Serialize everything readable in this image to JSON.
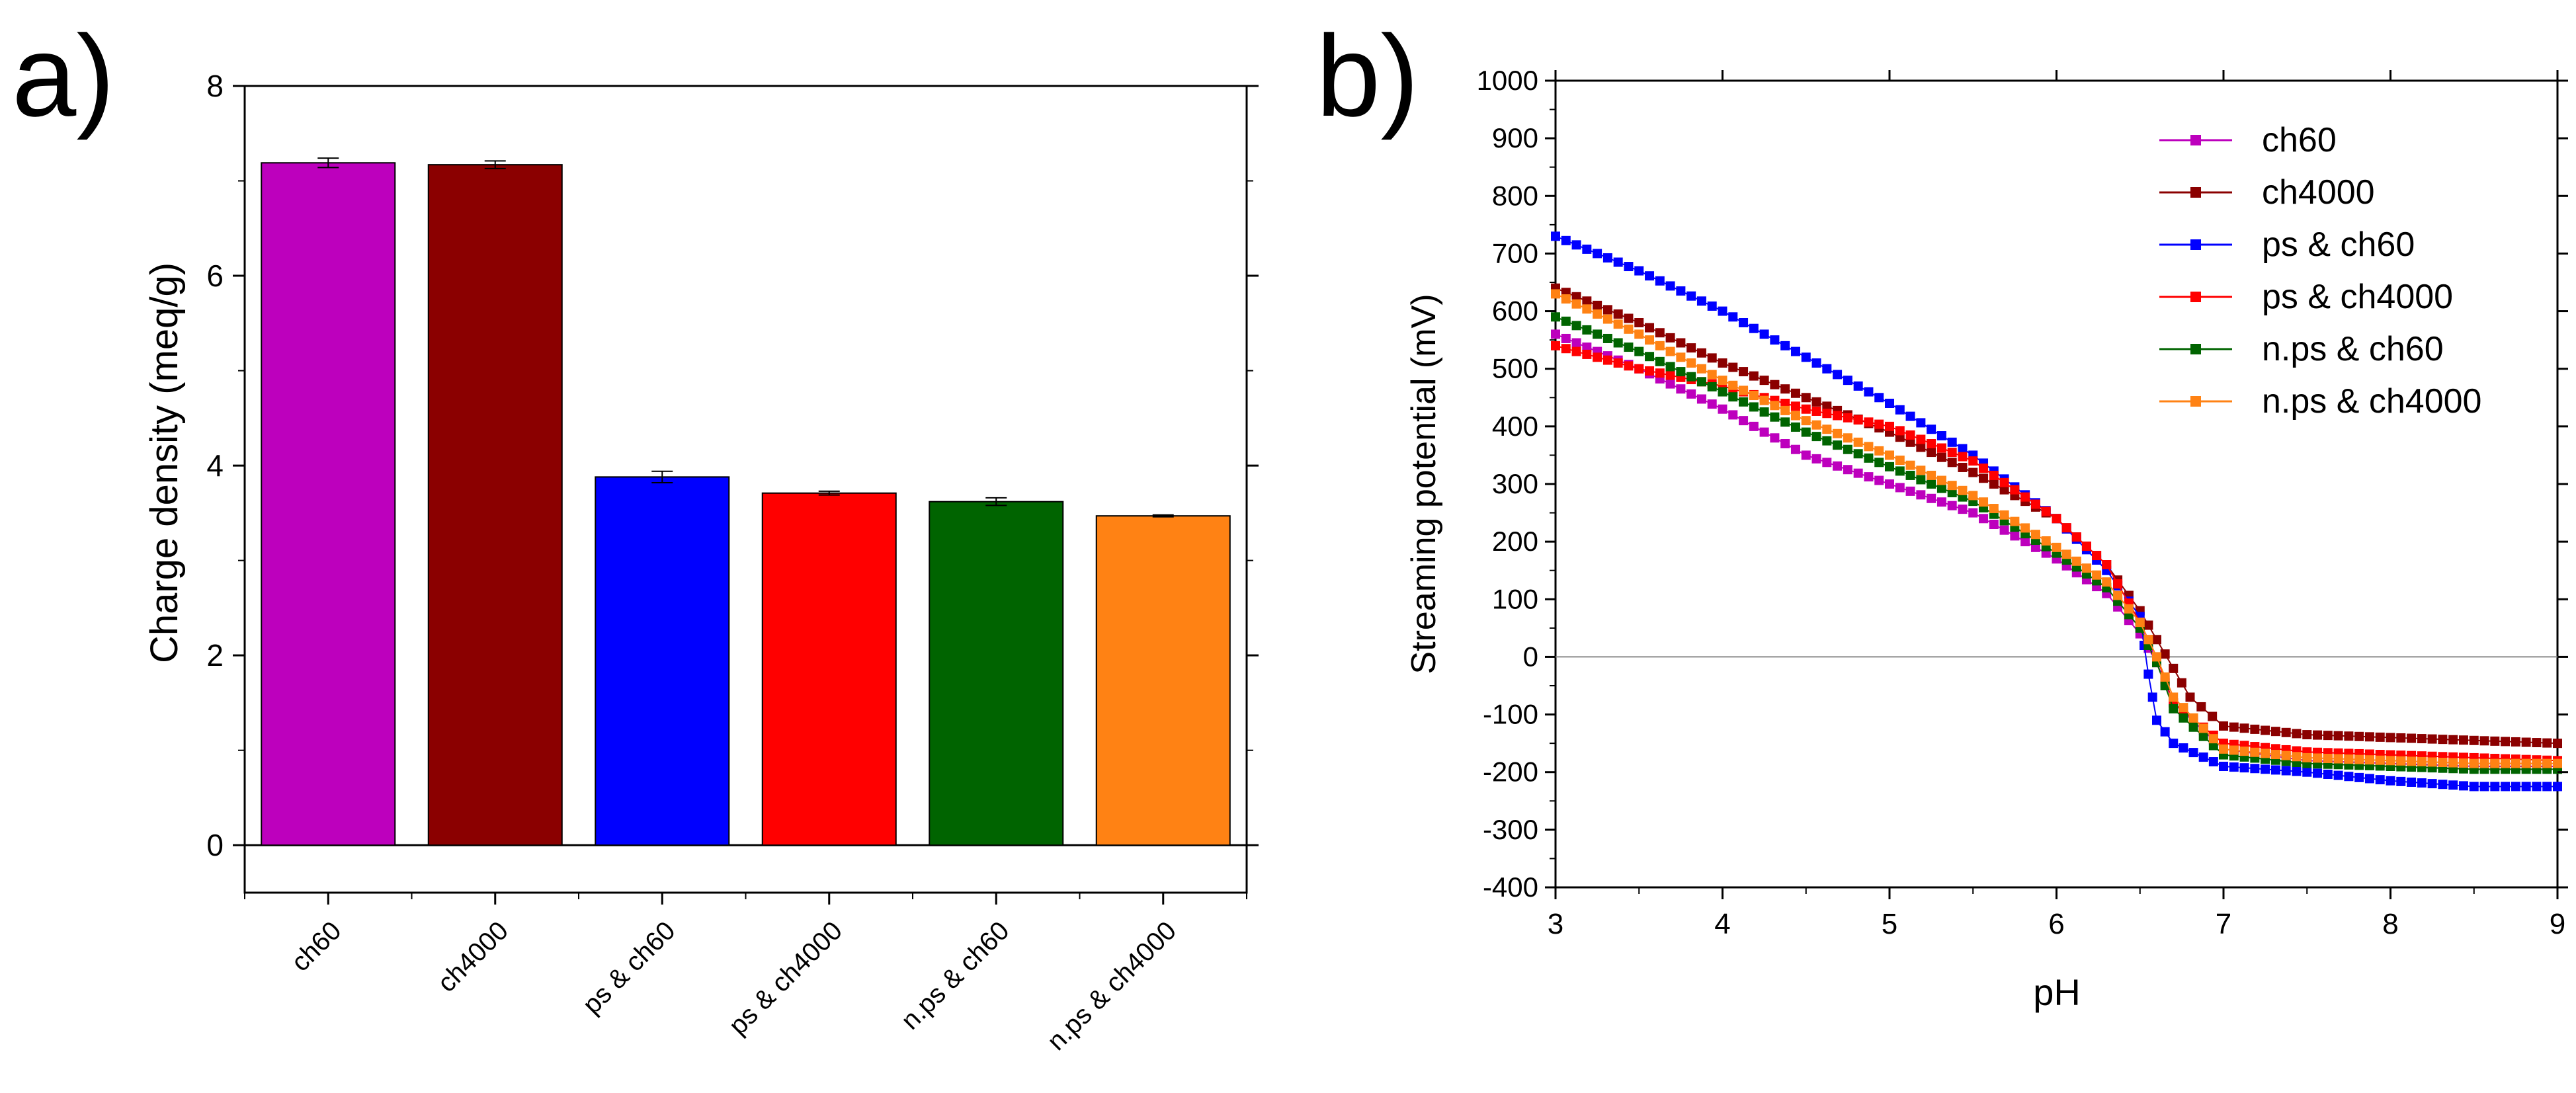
{
  "panels": {
    "a_label": "a)",
    "b_label": "b)"
  },
  "chart_data": [
    {
      "type": "bar",
      "panel": "a)",
      "title": "",
      "xlabel": "",
      "ylabel": "Charge density (meq/g)",
      "ylim": [
        -0.5,
        8
      ],
      "yticks": [
        0,
        2,
        4,
        6,
        8
      ],
      "categories": [
        "ch60",
        "ch4000",
        "ps & ch60",
        "ps & ch4000",
        "n.ps & ch60",
        "n.ps & ch4000"
      ],
      "values": [
        7.19,
        7.17,
        3.88,
        3.71,
        3.62,
        3.47
      ],
      "errors": [
        0.05,
        0.04,
        0.06,
        0.02,
        0.04,
        0.01
      ],
      "colors": [
        "#bd00bd",
        "#8b0000",
        "#0000ff",
        "#ff0000",
        "#006400",
        "#ff8214"
      ],
      "grid": false,
      "legend": "none"
    },
    {
      "type": "line",
      "panel": "b)",
      "title": "",
      "xlabel": "pH",
      "ylabel": "Streaming potential (mV)",
      "xlim": [
        3,
        9
      ],
      "ylim": [
        -400,
        1000
      ],
      "xticks": [
        3,
        4,
        5,
        6,
        7,
        8,
        9
      ],
      "yticks": [
        -400,
        -300,
        -200,
        -100,
        0,
        100,
        200,
        300,
        400,
        500,
        600,
        700,
        800,
        900,
        1000
      ],
      "zero_line": true,
      "legend": "top-right",
      "series": [
        {
          "name": "ch60",
          "color": "#bd00bd",
          "x": [
            3.0,
            3.5,
            4.0,
            4.5,
            5.0,
            5.5,
            6.0,
            6.3,
            6.5,
            6.6,
            6.7,
            7.0,
            7.5,
            8.0,
            8.5,
            9.0
          ],
          "y": [
            560,
            500,
            430,
            350,
            300,
            250,
            170,
            110,
            40,
            -10,
            -80,
            -160,
            -180,
            -185,
            -190,
            -190
          ]
        },
        {
          "name": "ch4000",
          "color": "#8b0000",
          "x": [
            3.0,
            3.5,
            4.0,
            4.5,
            5.0,
            5.5,
            6.0,
            6.3,
            6.5,
            6.6,
            6.7,
            6.8,
            7.0,
            7.5,
            8.0,
            8.5,
            9.0
          ],
          "y": [
            640,
            580,
            510,
            450,
            390,
            320,
            240,
            160,
            80,
            30,
            -20,
            -70,
            -120,
            -135,
            -140,
            -145,
            -150
          ]
        },
        {
          "name": "ps & ch60",
          "color": "#0000ff",
          "x": [
            3.0,
            3.5,
            4.0,
            4.5,
            5.0,
            5.5,
            6.0,
            6.3,
            6.5,
            6.55,
            6.6,
            6.7,
            7.0,
            7.5,
            8.0,
            8.5,
            9.0
          ],
          "y": [
            730,
            670,
            600,
            520,
            440,
            350,
            240,
            150,
            70,
            -30,
            -110,
            -150,
            -190,
            -200,
            -215,
            -225,
            -225
          ]
        },
        {
          "name": "ps & ch4000",
          "color": "#ff0000",
          "x": [
            3.0,
            3.5,
            4.0,
            4.5,
            5.0,
            5.5,
            6.0,
            6.3,
            6.5,
            6.6,
            6.7,
            7.0,
            7.5,
            8.0,
            8.5,
            9.0
          ],
          "y": [
            540,
            500,
            470,
            430,
            400,
            340,
            240,
            160,
            60,
            0,
            -80,
            -150,
            -165,
            -170,
            -175,
            -180
          ]
        },
        {
          "name": "n.ps & ch60",
          "color": "#006400",
          "x": [
            3.0,
            3.5,
            4.0,
            4.5,
            5.0,
            5.5,
            6.0,
            6.3,
            6.5,
            6.6,
            6.7,
            7.0,
            7.5,
            8.0,
            8.5,
            9.0
          ],
          "y": [
            590,
            530,
            460,
            390,
            330,
            270,
            180,
            120,
            50,
            -10,
            -90,
            -170,
            -185,
            -190,
            -195,
            -195
          ]
        },
        {
          "name": "n.ps & ch4000",
          "color": "#ff8214",
          "x": [
            3.0,
            3.5,
            4.0,
            4.5,
            5.0,
            5.5,
            6.0,
            6.3,
            6.5,
            6.6,
            6.7,
            7.0,
            7.5,
            8.0,
            8.5,
            9.0
          ],
          "y": [
            630,
            560,
            480,
            410,
            350,
            280,
            190,
            130,
            60,
            0,
            -70,
            -160,
            -175,
            -180,
            -185,
            -185
          ]
        }
      ]
    }
  ]
}
